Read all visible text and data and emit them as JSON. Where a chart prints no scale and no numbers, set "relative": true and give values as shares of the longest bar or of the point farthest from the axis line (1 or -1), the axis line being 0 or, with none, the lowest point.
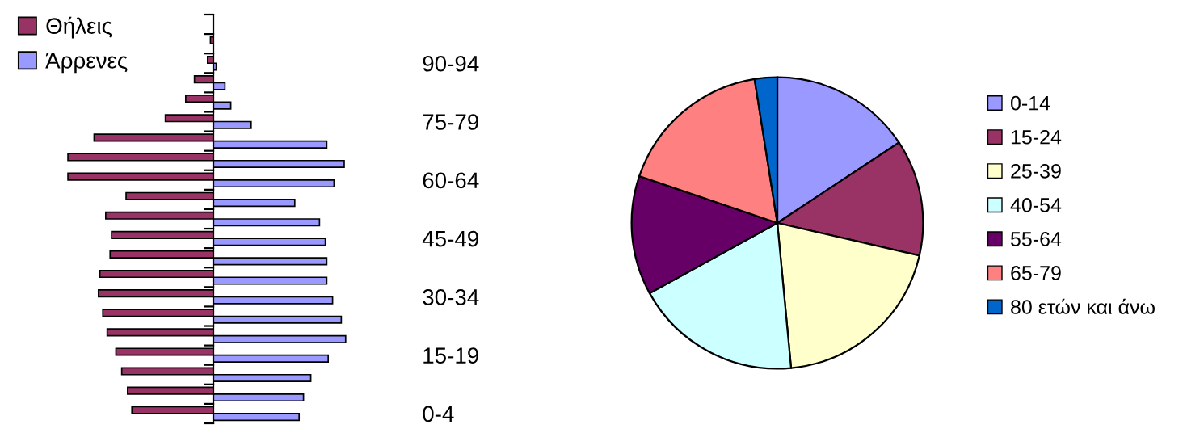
{
  "chart_data": [
    {
      "type": "bar",
      "orientation": "horizontal",
      "relative": true,
      "legend": "top left",
      "categories": [
        null,
        null,
        "90-94",
        null,
        null,
        "75-79",
        null,
        null,
        "60-64",
        null,
        null,
        "45-49",
        null,
        null,
        "30-34",
        null,
        null,
        "15-19",
        null,
        null,
        "0-4"
      ],
      "series": [
        {
          "name": "Θήλεις",
          "color": "#993366",
          "values": [
            null,
            -0.02,
            -0.04,
            -0.13,
            -0.19,
            -0.33,
            -0.82,
            -1,
            -1,
            -0.6,
            -0.74,
            -0.7,
            -0.71,
            -0.78,
            -0.79,
            -0.76,
            -0.73,
            -0.67,
            -0.63,
            -0.59,
            -0.56
          ]
        },
        {
          "name": "Άρρενες",
          "color": "#9999ff",
          "values": [
            null,
            null,
            0.02,
            0.08,
            0.12,
            0.26,
            0.78,
            0.9,
            0.83,
            0.56,
            0.73,
            0.77,
            0.78,
            0.78,
            0.82,
            0.88,
            0.91,
            0.79,
            0.67,
            0.62,
            0.59
          ]
        }
      ]
    },
    {
      "type": "pie",
      "legend": "right",
      "categories": [
        "0-14",
        "15-24",
        "25-39",
        "40-54",
        "55-64",
        "65-79",
        "80 ετών και άνω"
      ],
      "values": [
        15.7,
        12.9,
        19.9,
        18.5,
        13.2,
        17.3,
        2.5
      ],
      "colors": [
        "#9999ff",
        "#993366",
        "#ffffcc",
        "#ccffff",
        "#660066",
        "#ff8080",
        "#0066cc"
      ]
    }
  ]
}
